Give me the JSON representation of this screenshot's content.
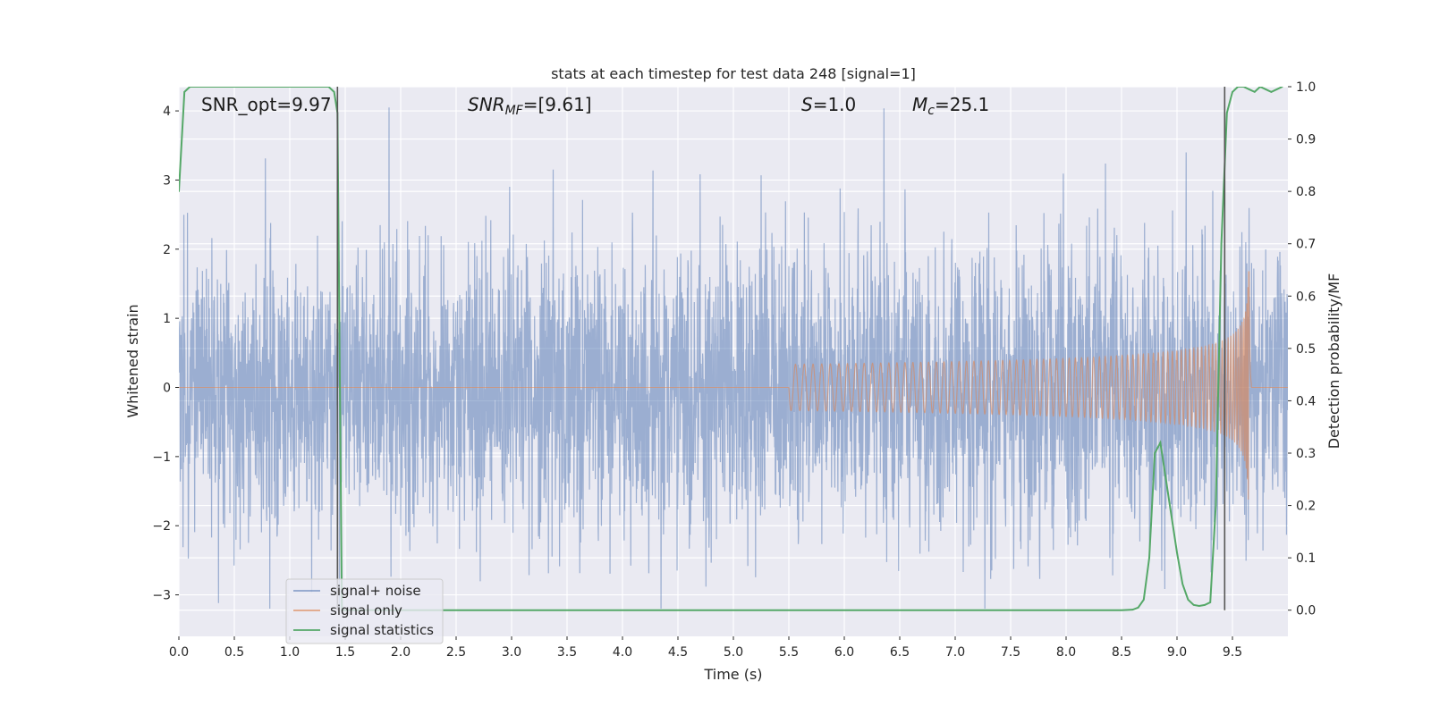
{
  "chart_data": {
    "type": "line",
    "title": "stats at each timestep for test data 248 [signal=1]",
    "xlabel": "Time (s)",
    "ylabel_left": "Whitened strain",
    "ylabel_right": "Detection probability/MF",
    "xlim": [
      0.0,
      10.0
    ],
    "ylim_left": [
      -3.6,
      4.35
    ],
    "ylim_right": [
      -0.05,
      1.0
    ],
    "xticks": [
      0.0,
      0.5,
      1.0,
      1.5,
      2.0,
      2.5,
      3.0,
      3.5,
      4.0,
      4.5,
      5.0,
      5.5,
      6.0,
      6.5,
      7.0,
      7.5,
      8.0,
      8.5,
      9.0,
      9.5
    ],
    "xtick_labels": [
      "0.0",
      "0.5",
      "1.0",
      "1.5",
      "2.0",
      "2.5",
      "3.0",
      "3.5",
      "4.0",
      "4.5",
      "5.0",
      "5.5",
      "6.0",
      "6.5",
      "7.0",
      "7.5",
      "8.0",
      "8.5",
      "9.0",
      "9.5"
    ],
    "yticks_left": [
      -3,
      -2,
      -1,
      0,
      1,
      2,
      3,
      4
    ],
    "ytick_labels_left": [
      "−3",
      "−2",
      "−1",
      "0",
      "1",
      "2",
      "3",
      "4"
    ],
    "yticks_right": [
      0.0,
      0.1,
      0.2,
      0.3,
      0.4,
      0.5,
      0.6,
      0.7,
      0.8,
      0.9,
      1.0
    ],
    "ytick_labels_right": [
      "0.0",
      "0.1",
      "0.2",
      "0.3",
      "0.4",
      "0.5",
      "0.6",
      "0.7",
      "0.8",
      "0.9",
      "1.0"
    ],
    "grid": true,
    "legend_position": "lower-left",
    "annotations": {
      "snr_opt": "SNR_opt=9.97",
      "snr_mf_label": "SNR",
      "snr_mf_sub": "MF",
      "snr_mf_value": "=[9.61]",
      "s_label": "S",
      "s_value": "=1.0",
      "mc_label": "M",
      "mc_sub": "c",
      "mc_value": "=25.1"
    },
    "vertical_lines_x": [
      1.43,
      9.43
    ],
    "series": [
      {
        "name": "signal+ noise",
        "color": "#4c72b0",
        "axis": "left",
        "kind": "noise",
        "sample_rate": 400,
        "approx_std": 1.0,
        "approx_max": 4.05,
        "approx_min": -3.2
      },
      {
        "name": "signal only",
        "color": "#dd8452",
        "axis": "left",
        "kind": "chirp",
        "start_time": 5.5,
        "merger_time": 9.65,
        "peak_amplitude": 1.9
      },
      {
        "name": "signal statistics",
        "color": "#55a868",
        "axis": "right",
        "x": [
          0.0,
          0.05,
          0.1,
          0.2,
          0.3,
          0.5,
          0.8,
          1.0,
          1.2,
          1.35,
          1.4,
          1.43,
          1.47,
          1.5,
          1.55,
          2.0,
          3.0,
          4.0,
          5.0,
          6.0,
          7.0,
          8.0,
          8.5,
          8.6,
          8.65,
          8.7,
          8.75,
          8.8,
          8.85,
          8.9,
          8.95,
          9.0,
          9.05,
          9.1,
          9.15,
          9.2,
          9.25,
          9.3,
          9.35,
          9.38,
          9.4,
          9.43,
          9.45,
          9.5,
          9.55,
          9.6,
          9.65,
          9.7,
          9.75,
          9.8,
          9.85,
          9.9,
          9.95
        ],
        "y": [
          0.8,
          0.99,
          1.0,
          1.0,
          1.0,
          1.0,
          1.0,
          1.0,
          1.0,
          1.0,
          0.99,
          0.95,
          0.0,
          0.0,
          0.0,
          0.0,
          0.0,
          0.0,
          0.0,
          0.0,
          0.0,
          0.0,
          0.0,
          0.001,
          0.005,
          0.02,
          0.1,
          0.3,
          0.32,
          0.25,
          0.18,
          0.11,
          0.05,
          0.02,
          0.01,
          0.008,
          0.01,
          0.015,
          0.2,
          0.5,
          0.7,
          0.85,
          0.95,
          0.99,
          1.0,
          1.0,
          0.995,
          0.99,
          1.0,
          0.995,
          0.99,
          0.995,
          1.0
        ]
      }
    ]
  }
}
